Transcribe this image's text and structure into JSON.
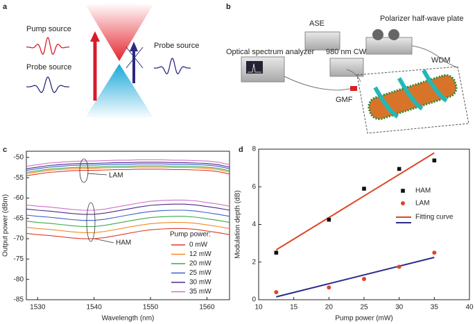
{
  "panel_labels": [
    "a",
    "b",
    "c",
    "d"
  ],
  "diagram": {
    "a": {
      "pump": "Pump source",
      "probe_left": "Probe source",
      "probe_right": "Probe source"
    },
    "b": {
      "ase": "ASE",
      "polarizer": "Polarizer half-wave plate",
      "cw": "980 nm CW",
      "osa": "Optical spectrum analyzer",
      "wdm": "WDM",
      "gmf": "GMF"
    }
  },
  "chart_data": [
    {
      "type": "line",
      "xlabel": "Wavelength (nm)",
      "ylabel": "Output power (dBm)",
      "xlim": [
        1528,
        1564
      ],
      "xticks": [
        1530,
        1540,
        1550,
        1560
      ],
      "ylim": [
        -85,
        -48.5
      ],
      "yticks": [
        -85,
        -80,
        -75,
        -70,
        -65,
        -60,
        -55,
        -50
      ],
      "legend_title": "Pump power:",
      "legend": "lower right",
      "annotations": [
        "LAM",
        "HAM"
      ],
      "x": [
        1528,
        1530,
        1532,
        1534,
        1536,
        1538,
        1540,
        1542,
        1544,
        1546,
        1548,
        1550,
        1552,
        1554,
        1556,
        1558,
        1560,
        1562,
        1564
      ],
      "series": [
        {
          "name": "0 mW",
          "color": "#e03a2a",
          "values": [
            -68.7,
            -69,
            -69.2,
            -69.5,
            -69.8,
            -70,
            -70,
            -69.7,
            -69.2,
            -68.7,
            -68.2,
            -67.8,
            -67.6,
            -67.5,
            -67.5,
            -67.7,
            -68.1,
            -68.5,
            -69
          ],
          "lam_values": [
            -54.5,
            -54.1,
            -53.7,
            -53.5,
            -53.3,
            -53.2,
            -53.2,
            -53.1,
            -53,
            -53,
            -52.9,
            -52.9,
            -52.9,
            -53,
            -53,
            -53.1,
            -53.2,
            -53.5,
            -54.1
          ]
        },
        {
          "name": "12 mW",
          "color": "#f08a24",
          "values": [
            -67.2,
            -67.5,
            -67.7,
            -68,
            -68.3,
            -68.5,
            -68.5,
            -68.2,
            -67.7,
            -67.2,
            -66.7,
            -66.3,
            -66.1,
            -66,
            -66,
            -66.2,
            -66.6,
            -67,
            -67.5
          ],
          "lam_values": [
            -54,
            -53.6,
            -53.2,
            -53,
            -52.8,
            -52.7,
            -52.7,
            -52.6,
            -52.5,
            -52.5,
            -52.4,
            -52.4,
            -52.4,
            -52.5,
            -52.5,
            -52.6,
            -52.7,
            -53,
            -53.6
          ]
        },
        {
          "name": "20 mW",
          "color": "#3aa84a",
          "values": [
            -65.7,
            -66,
            -66.2,
            -66.5,
            -66.8,
            -67,
            -67,
            -66.7,
            -66.2,
            -65.7,
            -65.2,
            -64.8,
            -64.6,
            -64.5,
            -64.5,
            -64.7,
            -65.1,
            -65.5,
            -66
          ],
          "lam_values": [
            -53.7,
            -53.3,
            -52.9,
            -52.7,
            -52.5,
            -52.4,
            -52.4,
            -52.3,
            -52.2,
            -52.2,
            -52.1,
            -52.1,
            -52.1,
            -52.2,
            -52.2,
            -52.3,
            -52.4,
            -52.7,
            -53.3
          ]
        },
        {
          "name": "25 mW",
          "color": "#3a5fc8",
          "values": [
            -64.2,
            -64.5,
            -64.7,
            -65,
            -65.3,
            -65.5,
            -65.5,
            -65.2,
            -64.7,
            -64.2,
            -63.7,
            -63.3,
            -63.1,
            -63,
            -63,
            -63.2,
            -63.6,
            -64,
            -64.5
          ],
          "lam_values": [
            -53.2,
            -52.8,
            -52.4,
            -52.2,
            -52,
            -51.9,
            -51.9,
            -51.8,
            -51.7,
            -51.7,
            -51.6,
            -51.6,
            -51.6,
            -51.7,
            -51.7,
            -51.8,
            -51.9,
            -52.2,
            -52.8
          ]
        },
        {
          "name": "30 mW",
          "color": "#4a2a8a",
          "values": [
            -62.7,
            -63,
            -63.2,
            -63.5,
            -63.8,
            -64,
            -64,
            -63.7,
            -63.2,
            -62.7,
            -62.2,
            -61.8,
            -61.6,
            -61.5,
            -61.5,
            -61.7,
            -62.1,
            -62.5,
            -63
          ],
          "lam_values": [
            -52.8,
            -52.4,
            -52,
            -51.8,
            -51.6,
            -51.5,
            -51.5,
            -51.4,
            -51.3,
            -51.3,
            -51.2,
            -51.2,
            -51.2,
            -51.3,
            -51.3,
            -51.4,
            -51.5,
            -51.8,
            -52.4
          ]
        },
        {
          "name": "35 mW",
          "color": "#d070c8",
          "values": [
            -61.7,
            -62,
            -62.2,
            -62.5,
            -62.8,
            -63,
            -63,
            -62.7,
            -62.2,
            -61.7,
            -61.2,
            -60.8,
            -60.6,
            -60.5,
            -60.5,
            -60.7,
            -61.1,
            -61.5,
            -62
          ],
          "lam_values": [
            -52.2,
            -51.8,
            -51.4,
            -51.2,
            -51,
            -50.9,
            -50.9,
            -50.8,
            -50.7,
            -50.7,
            -50.6,
            -50.6,
            -50.6,
            -50.7,
            -50.7,
            -50.8,
            -50.9,
            -51.2,
            -51.8
          ]
        }
      ]
    },
    {
      "type": "scatter",
      "xlabel": "Pump power (mW)",
      "ylabel": "Modulation depth (dB)",
      "xlim": [
        10,
        40
      ],
      "xticks": [
        10,
        15,
        20,
        25,
        30,
        35,
        40
      ],
      "ylim": [
        0,
        8
      ],
      "yticks": [
        0,
        2,
        4,
        6,
        8
      ],
      "legend": "upper right",
      "x": [
        12.5,
        20,
        25,
        30,
        35
      ],
      "series": [
        {
          "name": "HAM",
          "color": "#111111",
          "marker": "square",
          "values": [
            2.5,
            4.25,
            5.9,
            6.95,
            7.4
          ]
        },
        {
          "name": "LAM",
          "color": "#e0442a",
          "marker": "circle",
          "values": [
            0.4,
            0.65,
            1.1,
            1.75,
            2.5
          ]
        }
      ],
      "fit": {
        "name": "Fitting curve",
        "x": [
          12.5,
          35
        ],
        "lines": [
          {
            "color": "#e0442a",
            "values": [
              2.65,
              7.8
            ]
          },
          {
            "color": "#2a2a8a",
            "values": [
              0.15,
              2.25
            ]
          }
        ]
      }
    }
  ]
}
